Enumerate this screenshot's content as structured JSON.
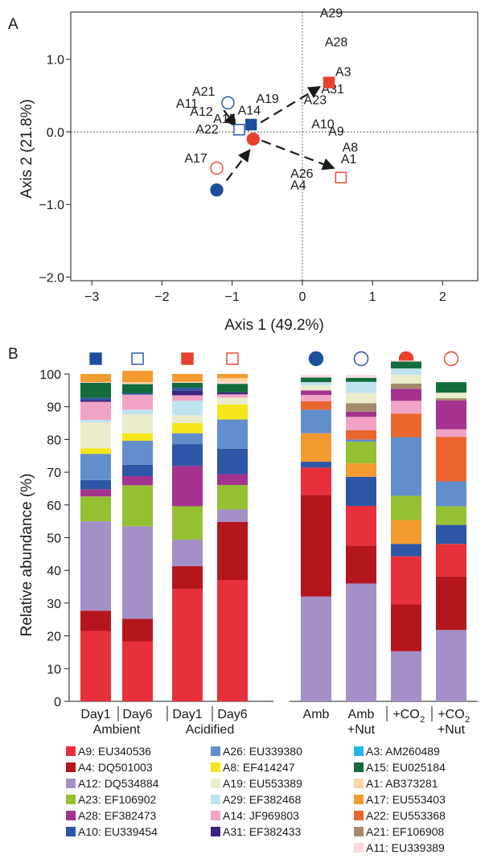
{
  "colors": {
    "blue": "#1f4e9c",
    "red": "#e8402c"
  },
  "chart_data": [
    {
      "type": "scatter",
      "panel_label": "A",
      "xlabel": "Axis 1 (49.2%)",
      "ylabel": "Axis 2 (21.8%)",
      "xlim": [
        -3.3,
        2.5
      ],
      "ylim": [
        -2.05,
        1.65
      ],
      "xticks": [
        -3,
        -2,
        -1,
        0,
        1,
        2
      ],
      "xtick_labels": [
        "−3",
        "−2",
        "−1",
        "0",
        "1",
        "2"
      ],
      "yticks": [
        -2,
        -1,
        0,
        1
      ],
      "ytick_labels": [
        "−2.0",
        "−1.0",
        "0.0",
        "1.0"
      ],
      "reference_lines": "dotted at x=0 and y=0",
      "samples": [
        {
          "marker": "square",
          "fill": "filled",
          "color": "#1f4e9c",
          "x": -0.73,
          "y": 0.1
        },
        {
          "marker": "square",
          "fill": "open",
          "color": "#1f4e9c",
          "x": -0.9,
          "y": 0.03
        },
        {
          "marker": "square",
          "fill": "filled",
          "color": "#e8402c",
          "x": 0.38,
          "y": 0.68
        },
        {
          "marker": "square",
          "fill": "open",
          "color": "#e8402c",
          "x": 0.55,
          "y": -0.63
        },
        {
          "marker": "circle",
          "fill": "filled",
          "color": "#1f4e9c",
          "x": -1.22,
          "y": -0.8
        },
        {
          "marker": "circle",
          "fill": "open",
          "color": "#1f4e9c",
          "x": -1.06,
          "y": 0.4
        },
        {
          "marker": "circle",
          "fill": "filled",
          "color": "#e8402c",
          "x": -0.7,
          "y": -0.1
        },
        {
          "marker": "circle",
          "fill": "open",
          "color": "#e8402c",
          "x": -1.22,
          "y": -0.5
        }
      ],
      "arrows": [
        {
          "from": [
            -0.78,
            0.02
          ],
          "to": [
            0.25,
            0.62
          ],
          "style": "dashed"
        },
        {
          "from": [
            -0.58,
            -0.12
          ],
          "to": [
            0.45,
            -0.5
          ],
          "style": "dashed"
        },
        {
          "from": [
            -1.08,
            -0.67
          ],
          "to": [
            -0.75,
            -0.25
          ],
          "style": "dashed"
        },
        {
          "from": [
            -1.12,
            0.3
          ],
          "to": [
            -0.95,
            0.08
          ],
          "style": "dashed"
        }
      ],
      "otu_labels": [
        {
          "text": "A29",
          "x": 0.25,
          "y": 1.58
        },
        {
          "text": "A28",
          "x": 0.32,
          "y": 1.18
        },
        {
          "text": "A3",
          "x": 0.47,
          "y": 0.77
        },
        {
          "text": "A31",
          "x": 0.27,
          "y": 0.53
        },
        {
          "text": "A23",
          "x": 0.02,
          "y": 0.38
        },
        {
          "text": "A19",
          "x": -0.66,
          "y": 0.4
        },
        {
          "text": "A21",
          "x": -1.57,
          "y": 0.5
        },
        {
          "text": "A11",
          "x": -1.8,
          "y": 0.33
        },
        {
          "text": "A12",
          "x": -1.6,
          "y": 0.22
        },
        {
          "text": "A14",
          "x": -0.92,
          "y": 0.24
        },
        {
          "text": "A15",
          "x": -1.27,
          "y": 0.12
        },
        {
          "text": "A22",
          "x": -1.52,
          "y": -0.02
        },
        {
          "text": "A10",
          "x": 0.13,
          "y": 0.05
        },
        {
          "text": "A9",
          "x": 0.37,
          "y": -0.05
        },
        {
          "text": "A8",
          "x": 0.57,
          "y": -0.27
        },
        {
          "text": "A1",
          "x": 0.55,
          "y": -0.43
        },
        {
          "text": "A26",
          "x": -0.17,
          "y": -0.63
        },
        {
          "text": "A4",
          "x": -0.17,
          "y": -0.79
        },
        {
          "text": "A17",
          "x": -1.68,
          "y": -0.42
        }
      ]
    },
    {
      "type": "bar",
      "stacked": true,
      "panel_label": "B",
      "ylabel": "Relative abundance (%)",
      "ylim": [
        0,
        100
      ],
      "yticks": [
        0,
        10,
        20,
        30,
        40,
        50,
        60,
        70,
        80,
        90,
        100
      ],
      "categories": [
        "Day1",
        "Day6",
        "Day1",
        "Day6",
        "Amb",
        "Amb\n+Nut",
        "+CO2",
        "+CO2\n+Nut"
      ],
      "category_labels": [
        {
          "line1": "Day1",
          "line2": ""
        },
        {
          "line1": "Day6",
          "line2": ""
        },
        {
          "line1": "Day1",
          "line2": ""
        },
        {
          "line1": "Day6",
          "line2": ""
        },
        {
          "line1": "Amb",
          "line2": ""
        },
        {
          "line1": "Amb",
          "line2": "+Nut"
        },
        {
          "line1": "+CO",
          "sub": "2",
          "line2": ""
        },
        {
          "line1": "+CO",
          "sub": "2",
          "line2": "+Nut"
        }
      ],
      "group_labels": [
        {
          "text": "Ambient",
          "bars": [
            0,
            1
          ]
        },
        {
          "text": "Acidified",
          "bars": [
            2,
            3
          ]
        }
      ],
      "top_markers": [
        {
          "marker": "square",
          "fill": "filled",
          "color": "#1f4e9c"
        },
        {
          "marker": "square",
          "fill": "open",
          "color": "#1f4e9c"
        },
        {
          "marker": "square",
          "fill": "filled",
          "color": "#e8402c"
        },
        {
          "marker": "square",
          "fill": "open",
          "color": "#e8402c"
        },
        {
          "marker": "circle",
          "fill": "filled",
          "color": "#1f4e9c"
        },
        {
          "marker": "circle",
          "fill": "open",
          "color": "#1f4e9c"
        },
        {
          "marker": "circle",
          "fill": "filled",
          "color": "#e8402c"
        },
        {
          "marker": "circle",
          "fill": "open",
          "color": "#e8402c"
        }
      ],
      "series": [
        {
          "name": "A9: EU340536",
          "color": "#e8303c",
          "values": [
            21.5,
            18.3,
            34.3,
            37.0,
            0,
            0,
            0,
            0
          ]
        },
        {
          "name": "A12: DQ534884",
          "color": "#a48fc6",
          "values": [
            0,
            0,
            0,
            0,
            32.0,
            36.0,
            15.3,
            21.8
          ]
        },
        {
          "name": "A4: DQ501003",
          "color": "#b5161e",
          "values": [
            6.2,
            6.9,
            7.0,
            17.8,
            31.0,
            11.6,
            14.3,
            16.3
          ]
        },
        {
          "name": "A9: EU340536",
          "color": "#e8303c",
          "values": [
            0,
            0,
            0,
            0,
            8.4,
            12.1,
            14.7,
            10.0
          ]
        },
        {
          "name": "A12: DQ534884",
          "color": "#a48fc6",
          "values": [
            27.3,
            28.3,
            8.1,
            3.8,
            0,
            0,
            0,
            0
          ]
        },
        {
          "name": "A10: EU339454",
          "color": "#2e56a6",
          "values": [
            0,
            0,
            0,
            0,
            1.8,
            8.9,
            3.8,
            5.8
          ]
        },
        {
          "name": "A17: EU553403",
          "color": "#f39b30",
          "values": [
            0,
            0,
            0,
            0,
            8.7,
            4.1,
            7.3,
            0
          ]
        },
        {
          "name": "A23: EF106902",
          "color": "#95c034",
          "values": [
            7.6,
            12.5,
            10.2,
            7.5,
            0,
            6.6,
            7.4,
            5.7
          ]
        },
        {
          "name": "A28: EF382473",
          "color": "#a4338f",
          "values": [
            2.2,
            2.8,
            12.3,
            3.3,
            0,
            0,
            0,
            0
          ]
        },
        {
          "name": "A10: EU339454",
          "color": "#2e56a6",
          "values": [
            2.8,
            3.5,
            6.7,
            7.8,
            0,
            0,
            0,
            0
          ]
        },
        {
          "name": "A26: EU339380",
          "color": "#638ecc",
          "values": [
            8.0,
            7.3,
            3.3,
            8.9,
            7.2,
            0.7,
            17.9,
            7.6
          ]
        },
        {
          "name": "A22: EU553368",
          "color": "#ea662e",
          "values": [
            0,
            0,
            0,
            0,
            2.6,
            2.8,
            7.2,
            13.6
          ]
        },
        {
          "name": "A8: EF414247",
          "color": "#f6e51a",
          "values": [
            1.7,
            2.3,
            3.1,
            4.6,
            0,
            0,
            0,
            0
          ]
        },
        {
          "name": "A19: EU553389",
          "color": "#eaeccc",
          "values": [
            7.9,
            5.8,
            2.4,
            2.1,
            0,
            0,
            0,
            0
          ]
        },
        {
          "name": "A29: EF382468",
          "color": "#bfe3ee",
          "values": [
            0.8,
            1.4,
            4.4,
            0,
            0,
            0,
            0,
            0
          ]
        },
        {
          "name": "A14: JF969803",
          "color": "#f1a3c6",
          "values": [
            5.5,
            4.6,
            1.7,
            1.0,
            1.9,
            4.1,
            3.9,
            2.3
          ]
        },
        {
          "name": "A28: EF382473",
          "color": "#a4338f",
          "values": [
            0,
            0,
            0,
            0,
            1.4,
            1.6,
            3.7,
            8.8
          ]
        },
        {
          "name": "A21: EF106908",
          "color": "#a58a6c",
          "values": [
            0,
            0,
            0,
            0,
            0,
            2.6,
            1.6,
            0.7
          ]
        },
        {
          "name": "A19: EU553389",
          "color": "#eaeccc",
          "values": [
            0,
            0,
            0,
            0,
            1.5,
            3.1,
            2.6,
            1.7
          ]
        },
        {
          "name": "A29: EF382468",
          "color": "#bfe3ee",
          "values": [
            0,
            0,
            0,
            0,
            1.0,
            3.4,
            2.0,
            0
          ]
        },
        {
          "name": "A31: EF382433",
          "color": "#3c2480",
          "values": [
            0.6,
            0,
            1.4,
            0.6,
            0,
            0,
            0,
            0
          ]
        },
        {
          "name": "A10: EU339454",
          "color": "#2e56a6",
          "values": [
            0.6,
            0.4,
            0.9,
            0,
            0,
            0,
            0,
            0
          ]
        },
        {
          "name": "A15: EU025184",
          "color": "#126c3c",
          "values": [
            4.6,
            2.8,
            1.5,
            2.6,
            1.4,
            1.2,
            2.1,
            3.2
          ]
        },
        {
          "name": "A11: EU339389",
          "color": "#fadadd",
          "values": [
            0.2,
            0,
            0.3,
            0.5,
            0.8,
            0.9,
            0.3,
            0
          ]
        },
        {
          "name": "A1: AB373281",
          "color": "#fcd5a8",
          "values": [
            0,
            0.6,
            0,
            1.2,
            0,
            0,
            0,
            0
          ]
        },
        {
          "name": "A17: EU553403",
          "color": "#f39b30",
          "values": [
            2.5,
            3.5,
            2.4,
            1.3,
            0,
            0,
            0,
            0
          ]
        }
      ],
      "legend": [
        {
          "label": "A9:  EU340536",
          "color": "#e8303c"
        },
        {
          "label": "A4:  DQ501003",
          "color": "#b5161e"
        },
        {
          "label": "A12:  DQ534884",
          "color": "#a48fc6"
        },
        {
          "label": "A23:  EF106902",
          "color": "#95c034"
        },
        {
          "label": "A28:  EF382473",
          "color": "#a4338f"
        },
        {
          "label": "A10:  EU339454",
          "color": "#2e56a6"
        },
        {
          "label": "A26:  EU339380",
          "color": "#638ecc"
        },
        {
          "label": "A8:  EF414247",
          "color": "#f6e51a"
        },
        {
          "label": "A19:  EU553389",
          "color": "#eaeccc"
        },
        {
          "label": "A29:  EF382468",
          "color": "#bfe3ee"
        },
        {
          "label": "A14:  JF969803",
          "color": "#f1a3c6"
        },
        {
          "label": "A31:  EF382433",
          "color": "#3c2480"
        },
        {
          "label": "A3:  AM260489",
          "color": "#27b5e6"
        },
        {
          "label": "A15:  EU025184",
          "color": "#126c3c"
        },
        {
          "label": "A1:  AB373281",
          "color": "#fcd5a8"
        },
        {
          "label": "A17:  EU553403",
          "color": "#f39b30"
        },
        {
          "label": "A22:  EU553368",
          "color": "#ea662e"
        },
        {
          "label": "A21:  EF106908",
          "color": "#a58a6c"
        },
        {
          "label": "A11:  EU339389",
          "color": "#fadadd"
        }
      ]
    }
  ]
}
